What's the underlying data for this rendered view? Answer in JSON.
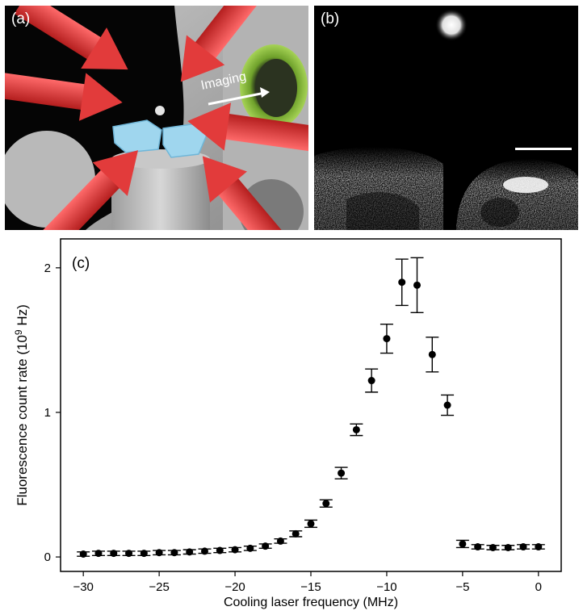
{
  "panel_a": {
    "label": "(a)",
    "arrow_text": "Imaging",
    "colors": {
      "beam": "#e23b3b",
      "lens": "#9fd6ee",
      "ring": "#8cc63f",
      "mount": "#bdbdbd"
    }
  },
  "panel_b": {
    "label": "(b)"
  },
  "chart_data": {
    "type": "scatter",
    "panel_label": "(c)",
    "title": "",
    "xlabel": "Cooling laser frequency (MHz)",
    "ylabel_main": "Fluorescence count rate (10",
    "ylabel_exp": "9",
    "ylabel_unit": " Hz)",
    "xlim": [
      -31.5,
      1.5
    ],
    "ylim": [
      -0.1,
      2.2
    ],
    "xticks": [
      -30,
      -25,
      -20,
      -15,
      -10,
      -5,
      0
    ],
    "xtick_labels": [
      "−30",
      "−25",
      "−20",
      "−15",
      "−10",
      "−5",
      "0"
    ],
    "yticks": [
      0,
      1,
      2
    ],
    "ytick_labels": [
      "0",
      "1",
      "2"
    ],
    "grid": false,
    "marker_color": "#000000",
    "x": [
      -30,
      -29,
      -28,
      -27,
      -26,
      -25,
      -24,
      -23,
      -22,
      -21,
      -20,
      -19,
      -18,
      -17,
      -16,
      -15,
      -14,
      -13,
      -12,
      -11,
      -10,
      -9,
      -8,
      -7,
      -6,
      -5,
      -4,
      -3,
      -2,
      -1,
      0
    ],
    "y": [
      0.02,
      0.025,
      0.025,
      0.025,
      0.025,
      0.03,
      0.03,
      0.035,
      0.04,
      0.045,
      0.05,
      0.06,
      0.075,
      0.11,
      0.16,
      0.23,
      0.37,
      0.58,
      0.88,
      1.22,
      1.51,
      1.9,
      1.88,
      1.4,
      1.05,
      0.09,
      0.07,
      0.065,
      0.065,
      0.07,
      0.07
    ],
    "yerr": [
      0.015,
      0.015,
      0.015,
      0.015,
      0.015,
      0.015,
      0.015,
      0.015,
      0.015,
      0.015,
      0.015,
      0.015,
      0.015,
      0.015,
      0.02,
      0.025,
      0.025,
      0.04,
      0.04,
      0.08,
      0.1,
      0.16,
      0.19,
      0.12,
      0.07,
      0.025,
      0.015,
      0.015,
      0.015,
      0.015,
      0.015
    ]
  }
}
